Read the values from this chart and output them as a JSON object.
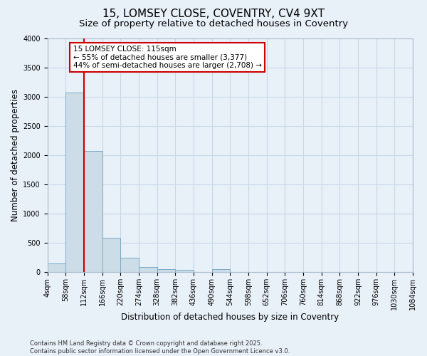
{
  "title": "15, LOMSEY CLOSE, COVENTRY, CV4 9XT",
  "subtitle": "Size of property relative to detached houses in Coventry",
  "xlabel": "Distribution of detached houses by size in Coventry",
  "ylabel": "Number of detached properties",
  "footnote1": "Contains HM Land Registry data © Crown copyright and database right 2025.",
  "footnote2": "Contains public sector information licensed under the Open Government Licence v3.0.",
  "annotation_line1": "15 LOMSEY CLOSE: 115sqm",
  "annotation_line2": "← 55% of detached houses are smaller (3,377)",
  "annotation_line3": "44% of semi-detached houses are larger (2,708) →",
  "bins": [
    4,
    58,
    112,
    166,
    220,
    274,
    328,
    382,
    436,
    490,
    544,
    598,
    652,
    706,
    760,
    814,
    868,
    922,
    976,
    1030,
    1084
  ],
  "values": [
    150,
    3080,
    2080,
    590,
    250,
    90,
    60,
    40,
    0,
    50,
    0,
    0,
    0,
    0,
    0,
    0,
    0,
    0,
    0,
    0
  ],
  "bar_color": "#ccdde8",
  "bar_edge_color": "#7aaac8",
  "red_line_x": 112,
  "ylim": [
    0,
    4000
  ],
  "yticks": [
    0,
    500,
    1000,
    1500,
    2000,
    2500,
    3000,
    3500,
    4000
  ],
  "grid_color": "#c8d8e8",
  "background_color": "#e8f0f8",
  "plot_bg_color": "#e8f0f8",
  "red_color": "#cc0000",
  "title_fontsize": 11,
  "subtitle_fontsize": 9.5,
  "axis_label_fontsize": 8.5,
  "tick_fontsize": 7,
  "footnote_fontsize": 6,
  "annotation_fontsize": 7.5
}
